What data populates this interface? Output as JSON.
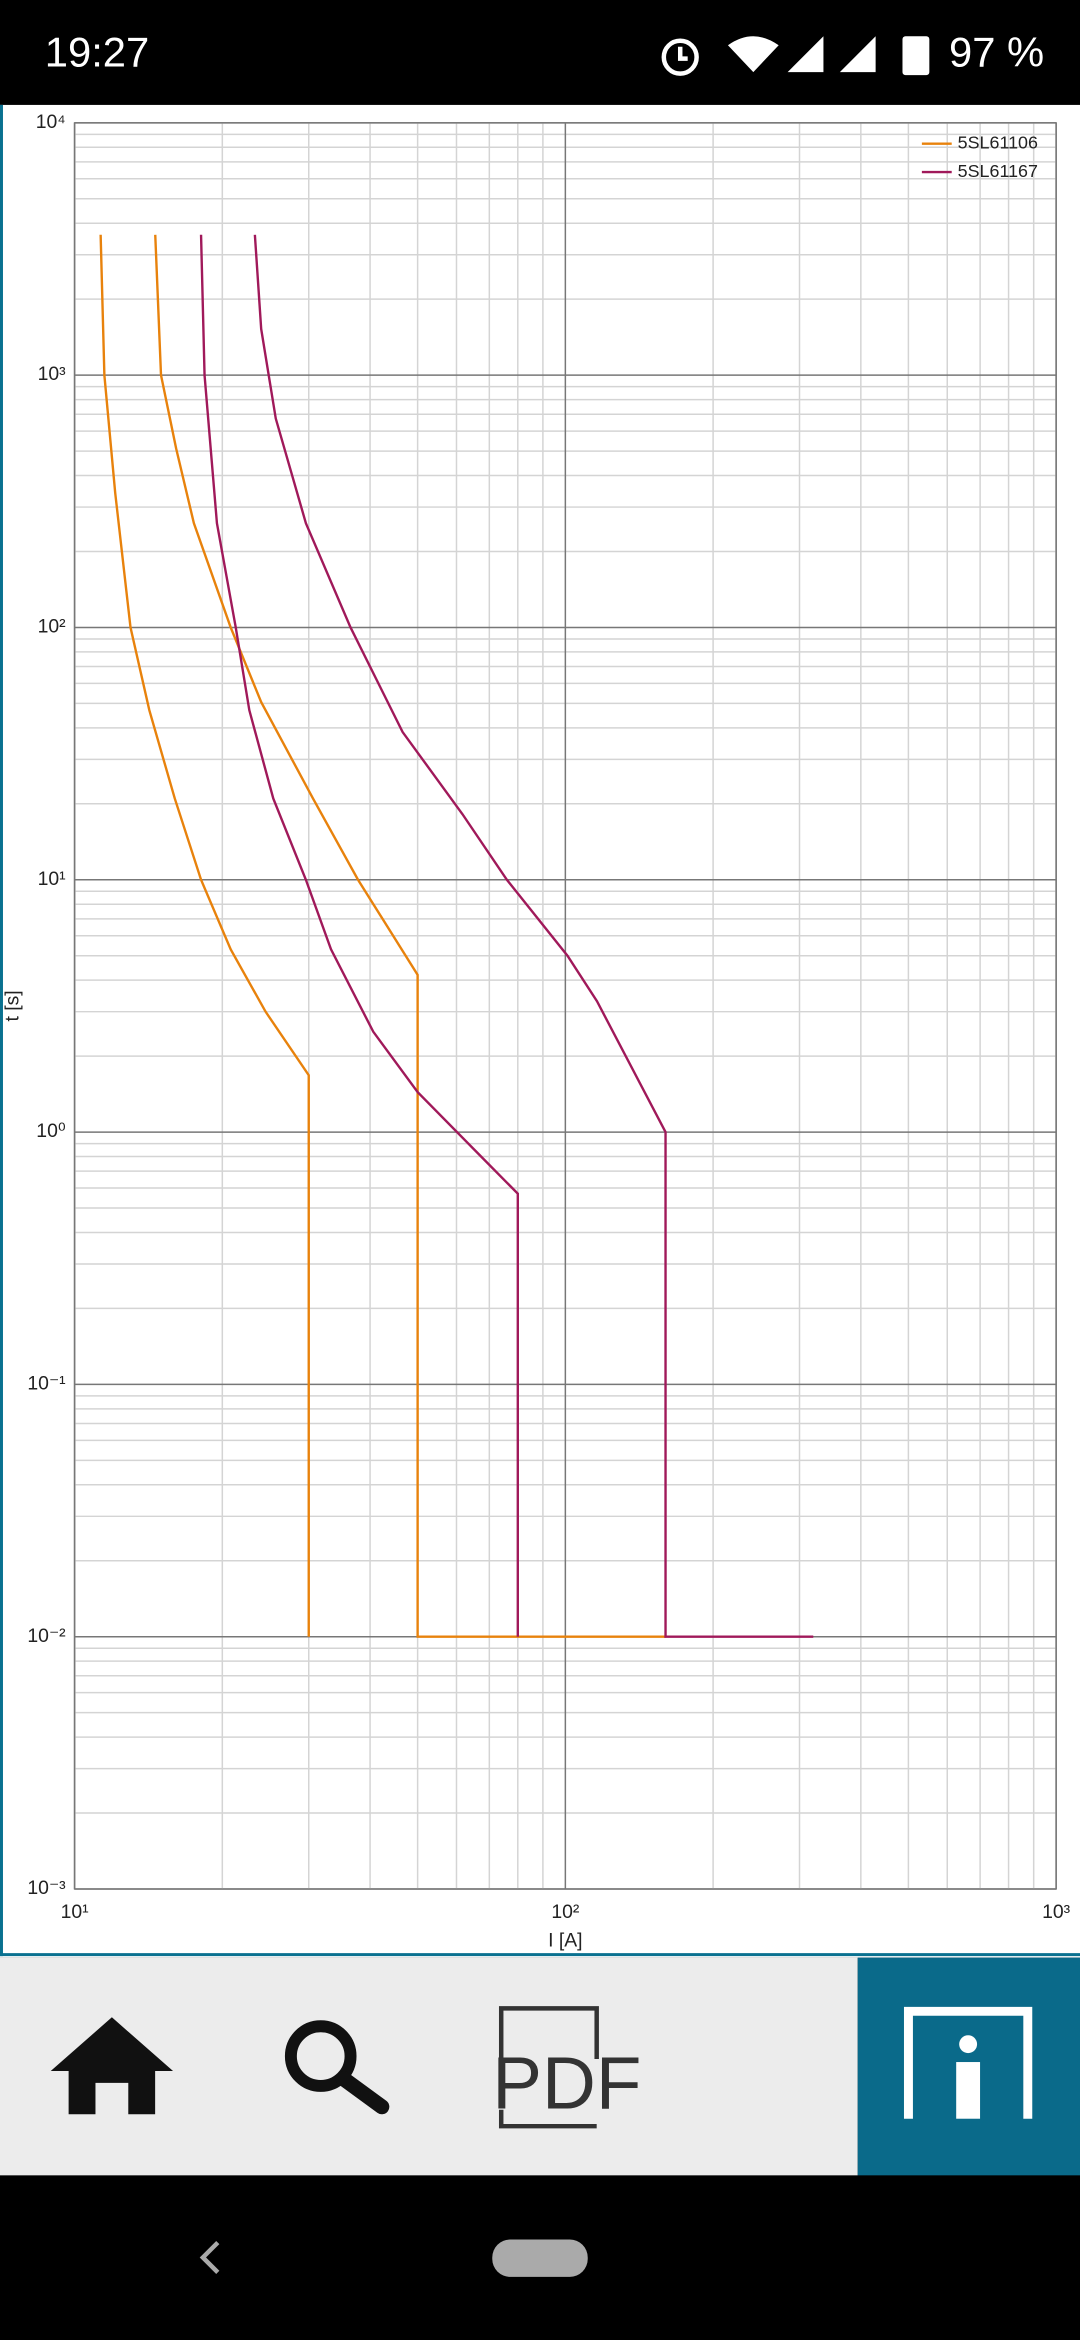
{
  "status_bar": {
    "time": "19:27",
    "battery": "97 %"
  },
  "chart_data": {
    "type": "line",
    "xlabel": "I [A]",
    "ylabel": "t [s]",
    "xscale": "log",
    "yscale": "log",
    "grid": true,
    "legend": "upper right",
    "xlim": [
      10,
      1000
    ],
    "ylim": [
      0.001,
      10000
    ],
    "xticks": [
      {
        "value": 10,
        "label": "10¹"
      },
      {
        "value": 100,
        "label": "10²"
      },
      {
        "value": 1000,
        "label": "10³"
      }
    ],
    "yticks": [
      {
        "value": 0.001,
        "label": "10⁻³"
      },
      {
        "value": 0.01,
        "label": "10⁻²"
      },
      {
        "value": 0.1,
        "label": "10⁻¹"
      },
      {
        "value": 1,
        "label": "10⁰"
      },
      {
        "value": 10,
        "label": "10¹"
      },
      {
        "value": 100,
        "label": "10²"
      },
      {
        "value": 1000,
        "label": "10³"
      },
      {
        "value": 10000,
        "label": "10⁴"
      }
    ],
    "series": [
      {
        "name": "5SL61106",
        "color": "#e8820c",
        "curves": [
          {
            "x": [
              11.3,
              11.5,
              12.1,
              13.0,
              14.2,
              16.0,
              18.1,
              20.8,
              24.5,
              30,
              30
            ],
            "values": [
              3600,
              1000,
              341,
              100,
              47,
              21,
              10,
              5.3,
              3.0,
              1.68,
              0.01
            ]
          },
          {
            "x": [
              14.6,
              15.0,
              16.1,
              17.5,
              20.8,
              24.0,
              30.6,
              37.8,
              50,
              50,
              160
            ],
            "values": [
              3600,
              1000,
              513,
              259,
              100,
              50.6,
              21,
              10,
              4.2,
              0.01,
              0.01
            ]
          }
        ]
      },
      {
        "name": "5SL61167",
        "color": "#a0195a",
        "curves": [
          {
            "x": [
              18.1,
              18.4,
              19.5,
              21.3,
              22.7,
              25.4,
              29.6,
              33.3,
              40.6,
              50.0,
              65.3,
              80,
              80
            ],
            "values": [
              3600,
              1000,
              259,
              100,
              47,
              21,
              10,
              5.3,
              2.5,
              1.44,
              0.85,
              0.57,
              0.01
            ]
          },
          {
            "x": [
              23.3,
              24.0,
              25.7,
              29.6,
              36.5,
              46.6,
              61.7,
              76.0,
              101,
              116,
              160,
              160,
              320
            ],
            "values": [
              3600,
              1524,
              673,
              259,
              100,
              38.5,
              18.2,
              10,
              5.0,
              3.3,
              1,
              0.01,
              0.01
            ]
          }
        ]
      }
    ]
  },
  "nav": {
    "pdf": "PDF"
  }
}
